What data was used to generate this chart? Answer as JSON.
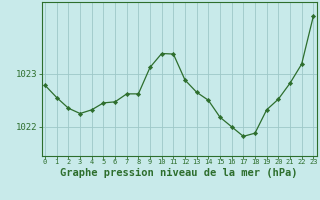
{
  "x": [
    0,
    1,
    2,
    3,
    4,
    5,
    6,
    7,
    8,
    9,
    10,
    11,
    12,
    13,
    14,
    15,
    16,
    17,
    18,
    19,
    20,
    21,
    22,
    23
  ],
  "y": [
    1022.78,
    1022.55,
    1022.35,
    1022.25,
    1022.32,
    1022.45,
    1022.47,
    1022.62,
    1022.62,
    1023.12,
    1023.38,
    1023.37,
    1022.88,
    1022.65,
    1022.5,
    1022.18,
    1022.0,
    1021.82,
    1021.88,
    1022.32,
    1022.52,
    1022.82,
    1023.18,
    1024.08
  ],
  "line_color": "#2d6e2d",
  "marker_color": "#2d6e2d",
  "bg_color": "#c8eaea",
  "grid_color": "#9ec8c8",
  "axis_color": "#2d6e2d",
  "xlabel": "Graphe pression niveau de la mer (hPa)",
  "xlabel_fontsize": 7.5,
  "ytick_labels": [
    "1022",
    "1023"
  ],
  "ytick_vals": [
    1022,
    1023
  ],
  "ylim": [
    1021.45,
    1024.35
  ],
  "xlim": [
    -0.3,
    23.3
  ],
  "tick_color": "#2d6e2d"
}
